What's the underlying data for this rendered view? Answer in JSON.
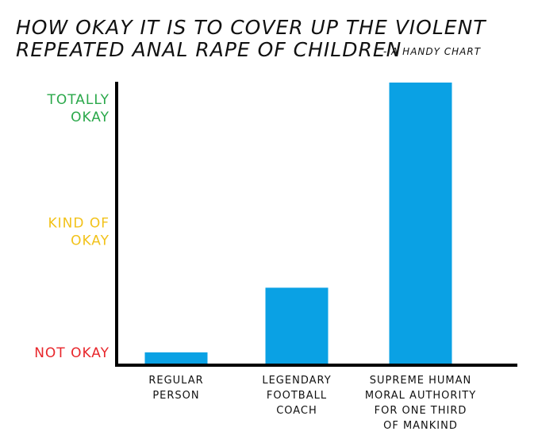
{
  "chart_data": {
    "type": "bar",
    "title": [
      "HOW OKAY IT IS TO COVER UP THE VIOLENT",
      "REPEATED ANAL RAPE OF CHILDREN"
    ],
    "subtitle": "- A HANDY CHART",
    "categories": [
      [
        "REGULAR",
        "PERSON"
      ],
      [
        "LEGENDARY",
        "FOOTBALL",
        "COACH"
      ],
      [
        "SUPREME HUMAN",
        "MORAL AUTHORITY",
        "FOR ONE THIRD",
        "OF MANKIND"
      ]
    ],
    "values": [
      4,
      27,
      100
    ],
    "ylim": [
      0,
      100
    ],
    "yticks": [
      {
        "label": [
          "TOTALLY",
          "OKAY"
        ],
        "value": 91,
        "color": "#2aa84a"
      },
      {
        "label": [
          "KIND OF",
          "OKAY"
        ],
        "value": 47,
        "color": "#f2c21a"
      },
      {
        "label": [
          "NOT OKAY"
        ],
        "value": 4,
        "color": "#e8262b"
      }
    ],
    "bar_color": "#0aa1e4",
    "grid": false,
    "legend": "none"
  }
}
